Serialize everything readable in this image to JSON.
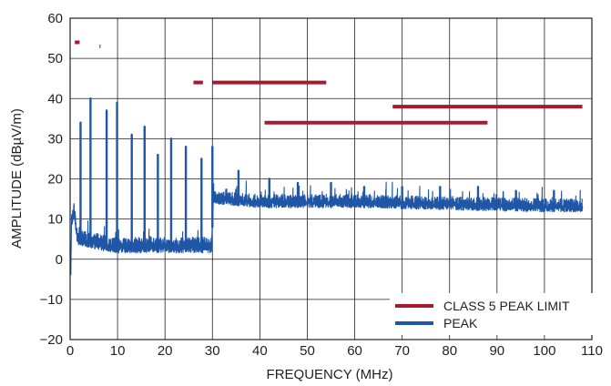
{
  "chart_data": {
    "type": "line",
    "title": "",
    "xlabel": "FREQUENCY (MHz)",
    "ylabel": "AMPLITUDE (dBµV/m)",
    "xlim": [
      0,
      110
    ],
    "ylim": [
      -20,
      60
    ],
    "xticks": [
      0,
      10,
      20,
      30,
      40,
      50,
      60,
      70,
      80,
      90,
      100,
      110
    ],
    "yticks": [
      -20,
      -10,
      0,
      10,
      20,
      30,
      40,
      50,
      60
    ],
    "grid": true,
    "legend_position": "bottom-right",
    "series": [
      {
        "name": "CLASS 5 PEAK LIMIT",
        "color": "#a6192e",
        "segments": [
          {
            "x": [
              1.0,
              2.0
            ],
            "y": [
              54,
              54
            ]
          },
          {
            "x": [
              6.2,
              6.4
            ],
            "y": [
              53,
              53
            ]
          },
          {
            "x": [
              26.0,
              28.0
            ],
            "y": [
              44,
              44
            ]
          },
          {
            "x": [
              30.0,
              54.0
            ],
            "y": [
              44,
              44
            ]
          },
          {
            "x": [
              41.0,
              88.0
            ],
            "y": [
              34,
              34
            ]
          },
          {
            "x": [
              68.0,
              108.0
            ],
            "y": [
              38,
              38
            ]
          }
        ]
      },
      {
        "name": "PEAK",
        "color": "#1f56a6",
        "noise_floor": [
          {
            "x": 0.15,
            "y": -4
          },
          {
            "x": 0.3,
            "y": 9
          },
          {
            "x": 0.8,
            "y": 12
          },
          {
            "x": 1.5,
            "y": 5
          },
          {
            "x": 5,
            "y": 4
          },
          {
            "x": 10,
            "y": 3
          },
          {
            "x": 20,
            "y": 3
          },
          {
            "x": 29.8,
            "y": 3
          },
          {
            "x": 30.2,
            "y": 15
          },
          {
            "x": 40,
            "y": 14
          },
          {
            "x": 60,
            "y": 14
          },
          {
            "x": 80,
            "y": 13.5
          },
          {
            "x": 100,
            "y": 13
          },
          {
            "x": 108,
            "y": 13
          }
        ],
        "peaks": [
          {
            "x": 2.2,
            "y": 34
          },
          {
            "x": 4.3,
            "y": 40
          },
          {
            "x": 7.7,
            "y": 37
          },
          {
            "x": 9.9,
            "y": 39
          },
          {
            "x": 13.0,
            "y": 31
          },
          {
            "x": 15.7,
            "y": 33
          },
          {
            "x": 18.5,
            "y": 26
          },
          {
            "x": 21.3,
            "y": 30
          },
          {
            "x": 24.4,
            "y": 28
          },
          {
            "x": 27.7,
            "y": 25
          },
          {
            "x": 30.0,
            "y": 28
          },
          {
            "x": 35.5,
            "y": 22
          },
          {
            "x": 42.0,
            "y": 20
          },
          {
            "x": 48.0,
            "y": 19
          },
          {
            "x": 55.0,
            "y": 19
          },
          {
            "x": 62.0,
            "y": 18
          },
          {
            "x": 70.0,
            "y": 18
          },
          {
            "x": 78.0,
            "y": 18
          },
          {
            "x": 86.0,
            "y": 18
          },
          {
            "x": 94.0,
            "y": 17
          },
          {
            "x": 102.0,
            "y": 17
          }
        ]
      }
    ]
  }
}
